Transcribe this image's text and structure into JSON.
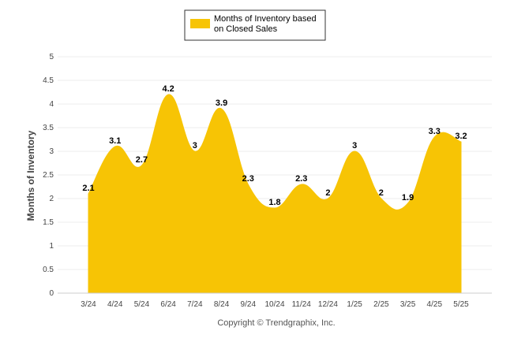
{
  "colors": {
    "series": "#F7C405",
    "grid": "#eeeeee",
    "axis": "#cccccc",
    "legend_border": "#333333"
  },
  "footer": "Copyright © Trendgraphix, Inc.",
  "chart_data": {
    "type": "area",
    "title": "",
    "xlabel": "",
    "ylabel": "Months of Inventory",
    "ylim": [
      0,
      5
    ],
    "yticks": [
      "0",
      "0.5",
      "1",
      "1.5",
      "2",
      "2.5",
      "3",
      "3.5",
      "4",
      "4.5",
      "5"
    ],
    "grid": true,
    "legend_position": "top-center",
    "categories": [
      "3/24",
      "4/24",
      "5/24",
      "6/24",
      "7/24",
      "8/24",
      "9/24",
      "10/24",
      "11/24",
      "12/24",
      "1/25",
      "2/25",
      "3/25",
      "4/25",
      "5/25"
    ],
    "series": [
      {
        "name": "Months of Inventory based on Closed Sales",
        "legend_lines": [
          "Months of Inventory based",
          "on Closed Sales"
        ],
        "values": [
          2.1,
          3.1,
          2.7,
          4.2,
          3,
          3.9,
          2.3,
          1.8,
          2.3,
          2,
          3,
          2,
          1.9,
          3.3,
          3.2
        ],
        "labels": [
          "2.1",
          "3.1",
          "2.7",
          "4.2",
          "3",
          "3.9",
          "2.3",
          "1.8",
          "2.3",
          "2",
          "3",
          "2",
          "1.9",
          "3.3",
          "3.2"
        ]
      }
    ]
  }
}
